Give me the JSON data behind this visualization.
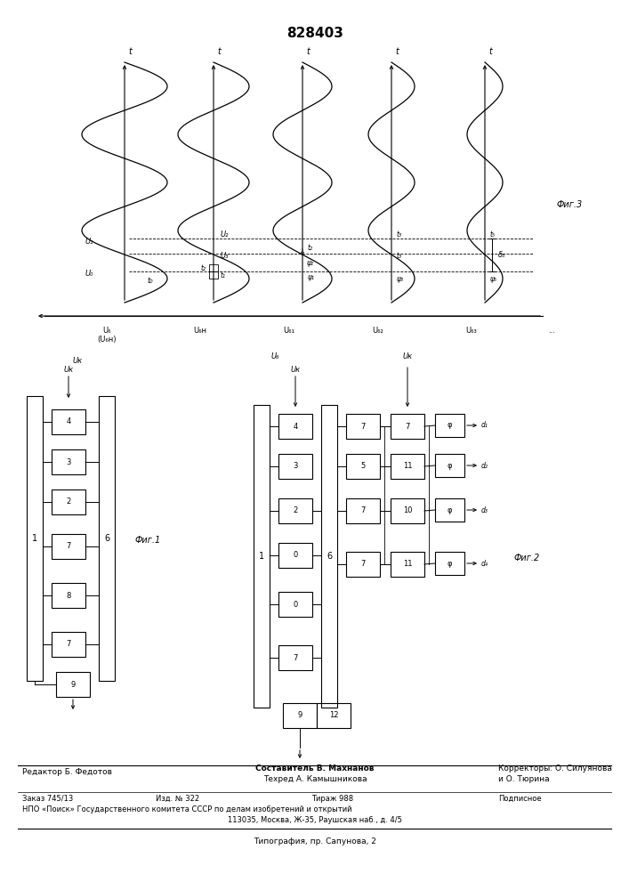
{
  "title": "828403",
  "fig3_label": "Фиг.3",
  "fig1_label": "Фиг.1",
  "fig2_label": "Фиг.2",
  "footer_editor": "Редактор Б. Федотов",
  "footer_composer": "Составитель В. Махнанов",
  "footer_tech": "Техред А. Камышникова",
  "footer_correctors": "Корректоры: О. Силуянова",
  "footer_correctors2": "и О. Тюрина",
  "footer_order": "Заказ 745/13",
  "footer_issue": "Изд. № 322",
  "footer_print": "Тираж 988",
  "footer_sub": "Подписное",
  "footer_npo": "НПО «Поиск» Государственного комитета СССР по делам изобретений и открытий",
  "footer_addr": "113035, Москва, Ж-35, Раушская наб., д. 4/5",
  "footer_typo": "Типография, пр. Сапунова, 2",
  "bg_color": "#ffffff"
}
